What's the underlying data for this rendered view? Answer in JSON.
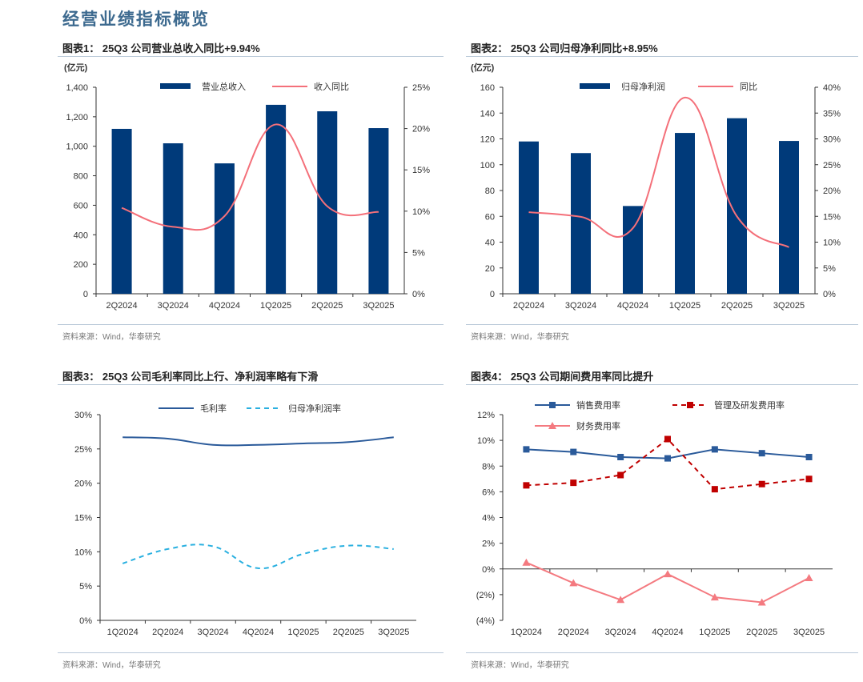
{
  "page_title": "经营业绩指标概览",
  "colors": {
    "navy": "#003a7a",
    "pink": "#f4707a",
    "blue_line": "#2a5a9a",
    "cyan_dash": "#2ab0e0",
    "red": "#c00000",
    "salmon": "#f47a80"
  },
  "chart_data": [
    {
      "type": "bar+line",
      "title": "图表1：  25Q3 公司营业总收入同比+9.94%",
      "left_unit": "(亿元)",
      "source": "资料来源：Wind，华泰研究",
      "categories": [
        "2Q2024",
        "3Q2024",
        "4Q2024",
        "1Q2025",
        "2Q2025",
        "3Q2025"
      ],
      "ylim": [
        0,
        1400
      ],
      "yticks": [
        "0",
        "200",
        "400",
        "600",
        "800",
        "1,000",
        "1,200",
        "1,400"
      ],
      "y2lim": [
        0,
        25
      ],
      "y2ticks": [
        "0%",
        "5%",
        "10%",
        "15%",
        "20%",
        "25%"
      ],
      "legend_position": "top",
      "series": [
        {
          "name": "营业总收入",
          "type": "bar",
          "axis": "left",
          "values": [
            1118,
            1020,
            884,
            1281,
            1237,
            1123
          ]
        },
        {
          "name": "收入同比",
          "type": "line",
          "axis": "right",
          "smooth": true,
          "values": [
            10.4,
            8.1,
            9.4,
            20.5,
            10.6,
            9.9
          ]
        }
      ]
    },
    {
      "type": "bar+line",
      "title": "图表2：  25Q3 公司归母净利同比+8.95%",
      "left_unit": "(亿元)",
      "source": "资料来源：Wind，华泰研究",
      "categories": [
        "2Q2024",
        "3Q2024",
        "4Q2024",
        "1Q2025",
        "2Q2025",
        "3Q2025"
      ],
      "ylim": [
        0,
        160
      ],
      "yticks": [
        "0",
        "20",
        "40",
        "60",
        "80",
        "100",
        "120",
        "140",
        "160"
      ],
      "y2lim": [
        0,
        40
      ],
      "y2ticks": [
        "0%",
        "5%",
        "10%",
        "15%",
        "20%",
        "25%",
        "30%",
        "35%",
        "40%"
      ],
      "legend_position": "top",
      "series": [
        {
          "name": "归母净利润",
          "type": "bar",
          "axis": "left",
          "values": [
            118,
            109,
            68,
            124.6,
            136,
            118.4
          ]
        },
        {
          "name": "同比",
          "type": "line",
          "axis": "right",
          "smooth": true,
          "values": [
            15.8,
            14.9,
            12.7,
            38,
            15,
            9
          ]
        }
      ]
    },
    {
      "type": "line",
      "title": "图表3：  25Q3 公司毛利率同比上行、净利润率略有下滑",
      "source": "资料来源：Wind，华泰研究",
      "categories": [
        "1Q2024",
        "2Q2024",
        "3Q2024",
        "4Q2024",
        "1Q2025",
        "2Q2025",
        "3Q2025"
      ],
      "ylim": [
        0,
        30
      ],
      "yticks": [
        "0%",
        "5%",
        "10%",
        "15%",
        "20%",
        "25%",
        "30%"
      ],
      "legend_position": "top",
      "series": [
        {
          "name": "毛利率",
          "style": "solid",
          "smooth": true,
          "values": [
            26.7,
            26.5,
            25.6,
            25.6,
            25.8,
            26.0,
            26.7
          ]
        },
        {
          "name": "归母净利润率",
          "style": "dashed",
          "smooth": true,
          "values": [
            8.3,
            10.4,
            10.8,
            7.6,
            9.7,
            10.9,
            10.4
          ]
        }
      ]
    },
    {
      "type": "line",
      "title": "图表4：  25Q3 公司期间费用率同比提升",
      "source": "资料来源：Wind，华泰研究",
      "categories": [
        "1Q2024",
        "2Q2024",
        "3Q2024",
        "4Q2024",
        "1Q2025",
        "2Q2025",
        "3Q2025"
      ],
      "ylim": [
        -4,
        12
      ],
      "yticks": [
        "(4%)",
        "(2%)",
        "0%",
        "2%",
        "4%",
        "6%",
        "8%",
        "10%",
        "12%"
      ],
      "legend_position": "top",
      "series": [
        {
          "name": "销售费用率",
          "style": "solid",
          "marker": "square",
          "values": [
            9.3,
            9.1,
            8.7,
            8.6,
            9.3,
            9.0,
            8.7
          ]
        },
        {
          "name": "管理及研发费用率",
          "style": "dashed",
          "marker": "square",
          "values": [
            6.5,
            6.7,
            7.3,
            10.1,
            6.2,
            6.6,
            7.0
          ]
        },
        {
          "name": "财务费用率",
          "style": "solid",
          "marker": "triangle",
          "values": [
            0.5,
            -1.1,
            -2.4,
            -0.4,
            -2.2,
            -2.6,
            -0.7
          ]
        }
      ]
    }
  ]
}
